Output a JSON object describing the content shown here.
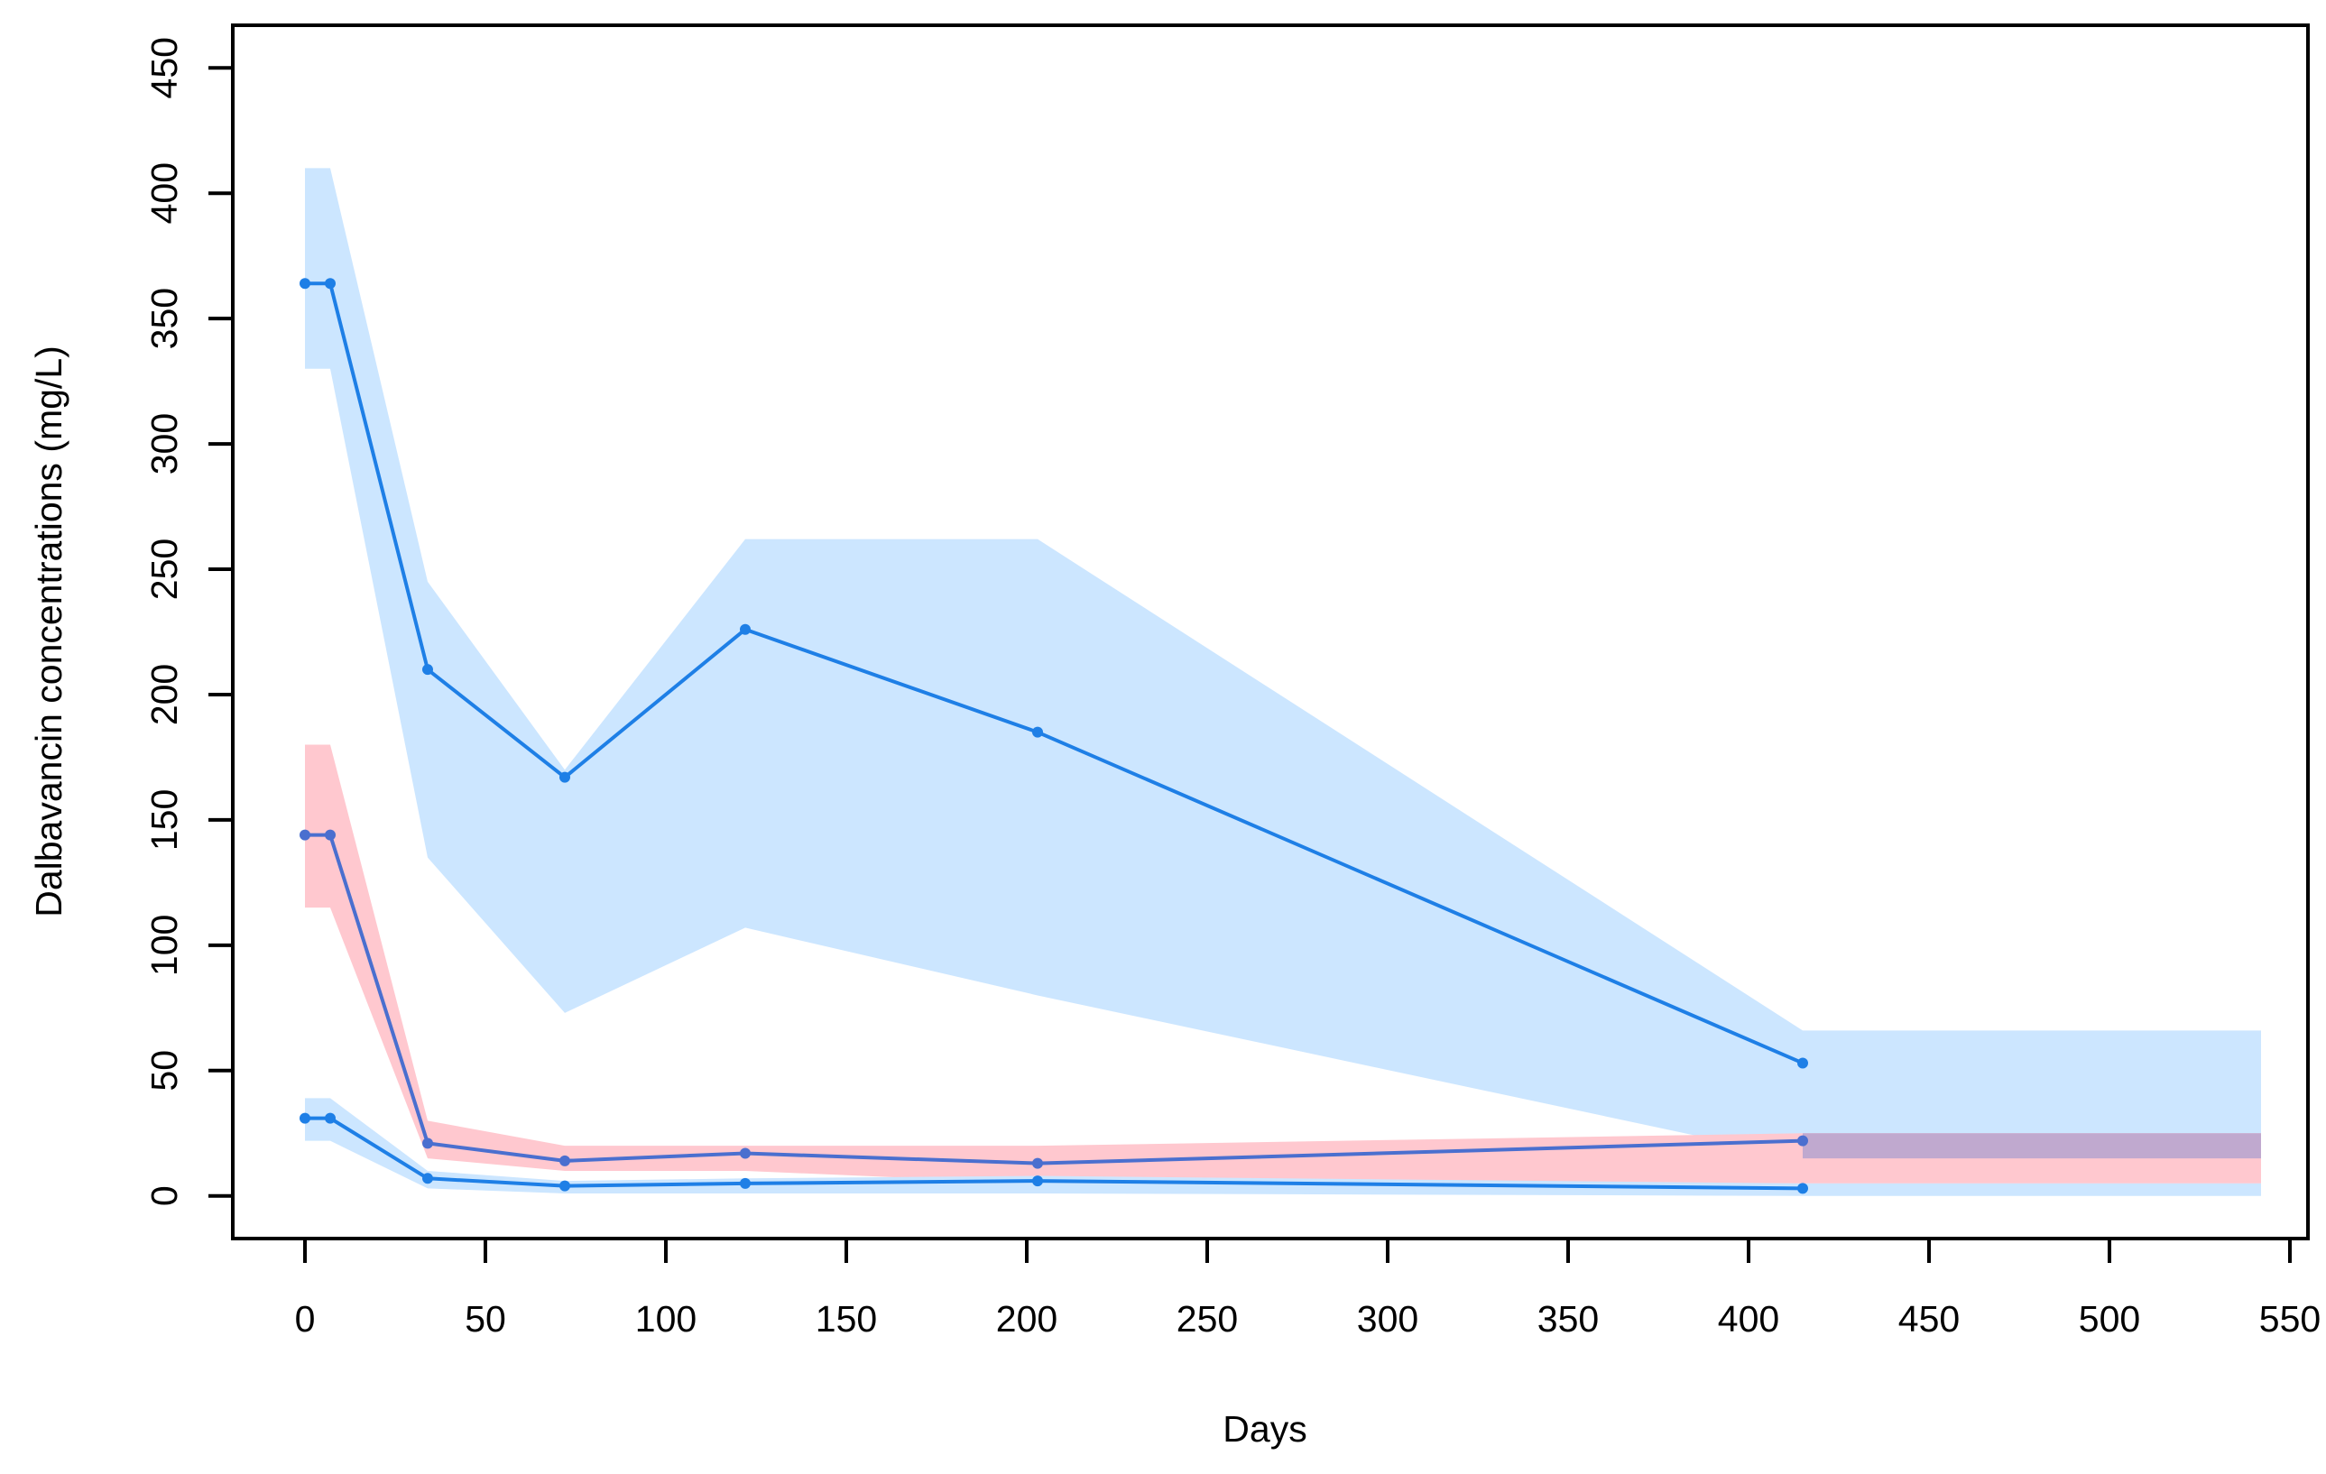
{
  "chart_data": {
    "type": "line",
    "title": "",
    "xlabel": "Days",
    "ylabel": "Dalbavancin concentrations (mg/L)",
    "xlim": [
      -20,
      555
    ],
    "ylim": [
      -17,
      467
    ],
    "x_ticks": [
      0,
      50,
      100,
      150,
      200,
      250,
      300,
      350,
      400,
      450,
      500,
      550
    ],
    "y_ticks": [
      0,
      50,
      100,
      150,
      200,
      250,
      300,
      350,
      400,
      450
    ],
    "grid": false,
    "legend": "none",
    "series": [
      {
        "color": "#1e7fe6",
        "x": [
          0,
          7,
          34,
          72,
          122,
          203,
          415
        ],
        "y": [
          364,
          364,
          210,
          167,
          226,
          185,
          53
        ]
      },
      {
        "color": "#4a6fcf",
        "x": [
          0,
          7,
          34,
          72,
          122,
          203,
          415
        ],
        "y": [
          144,
          144,
          21,
          14,
          17,
          13,
          22
        ]
      },
      {
        "color": "#1e7fe6",
        "x": [
          0,
          7,
          34,
          72,
          122,
          203,
          415
        ],
        "y": [
          31,
          31,
          7,
          4,
          5,
          6,
          3
        ]
      }
    ],
    "bands": [
      {
        "color": "#cce6ff",
        "x": [
          0,
          7,
          7,
          34,
          72,
          122,
          203,
          415,
          542
        ],
        "upper": [
          410,
          410,
          410,
          245,
          170,
          262,
          262,
          66,
          66
        ],
        "lower": [
          330,
          330,
          330,
          135,
          73,
          107,
          80,
          15,
          15
        ]
      },
      {
        "color": "#ffc8cf",
        "x": [
          0,
          7,
          34,
          72,
          122,
          203,
          415,
          542
        ],
        "upper": [
          180,
          180,
          30,
          20,
          20,
          20,
          25,
          25
        ],
        "lower": [
          115,
          115,
          15,
          10,
          10,
          5,
          5,
          5
        ]
      },
      {
        "color": "#cce6ff",
        "x": [
          0,
          7,
          34,
          72,
          122,
          203,
          415,
          542
        ],
        "upper": [
          39,
          39,
          10,
          6,
          7,
          8,
          5,
          5
        ],
        "lower": [
          22,
          22,
          3,
          1,
          1,
          1,
          0,
          0
        ]
      }
    ],
    "overlap": {
      "color": "#c0a9cf",
      "x": [
        415,
        542
      ],
      "upper": [
        25,
        25
      ],
      "lower": [
        15,
        15
      ]
    }
  }
}
